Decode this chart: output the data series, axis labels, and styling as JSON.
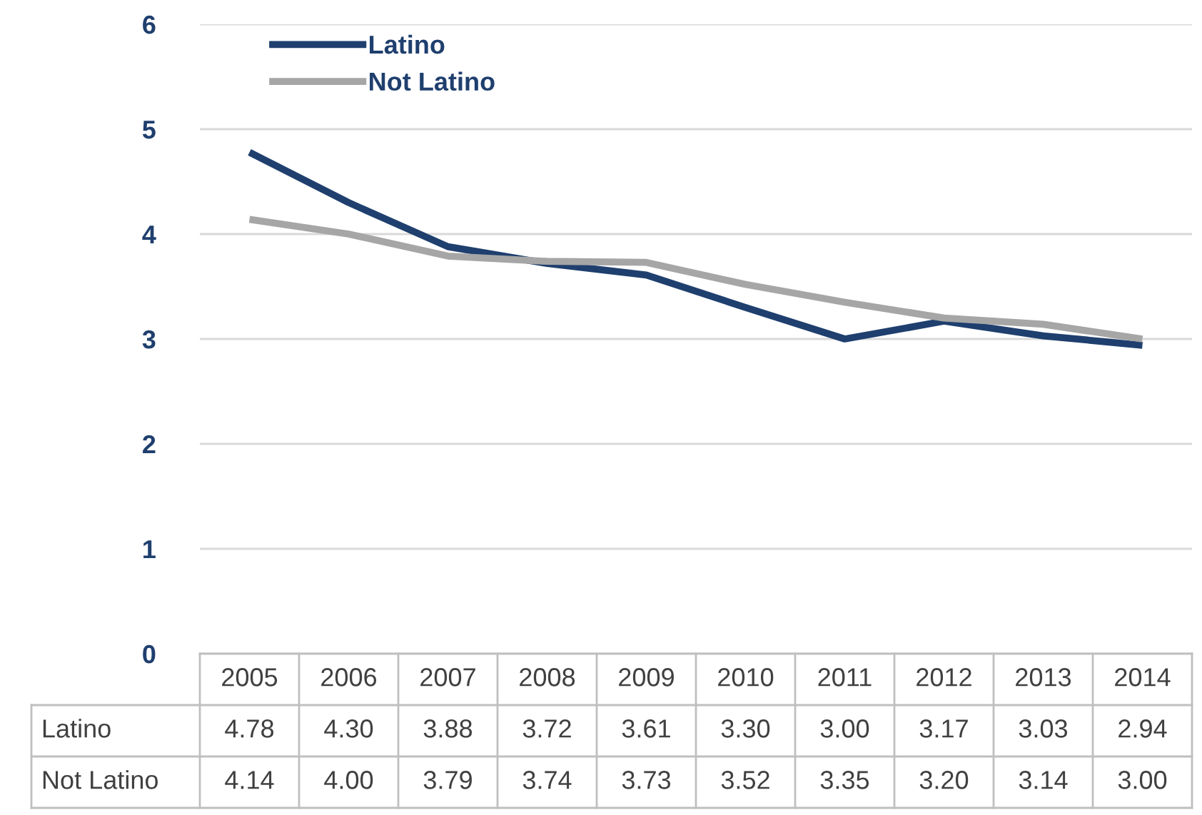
{
  "chart_data": {
    "type": "line",
    "categories": [
      "2005",
      "2006",
      "2007",
      "2008",
      "2009",
      "2010",
      "2011",
      "2012",
      "2013",
      "2014"
    ],
    "series": [
      {
        "name": "Latino",
        "color": "#1f3f6e",
        "values": [
          4.78,
          4.3,
          3.88,
          3.72,
          3.61,
          3.3,
          3.0,
          3.17,
          3.03,
          2.94
        ],
        "value_labels": [
          "4.78",
          "4.30",
          "3.88",
          "3.72",
          "3.61",
          "3.30",
          "3.00",
          "3.17",
          "3.03",
          "2.94"
        ]
      },
      {
        "name": "Not Latino",
        "color": "#a6a6a6",
        "values": [
          4.14,
          4.0,
          3.79,
          3.74,
          3.73,
          3.52,
          3.35,
          3.2,
          3.14,
          3.0
        ],
        "value_labels": [
          "4.14",
          "4.00",
          "3.79",
          "3.74",
          "3.73",
          "3.52",
          "3.35",
          "3.20",
          "3.14",
          "3.00"
        ]
      }
    ],
    "ylim": [
      0,
      6
    ],
    "yticks": [
      0,
      1,
      2,
      3,
      4,
      5,
      6
    ],
    "grid": "y",
    "legend": "top left",
    "marker": "none",
    "line_style": "solid"
  }
}
